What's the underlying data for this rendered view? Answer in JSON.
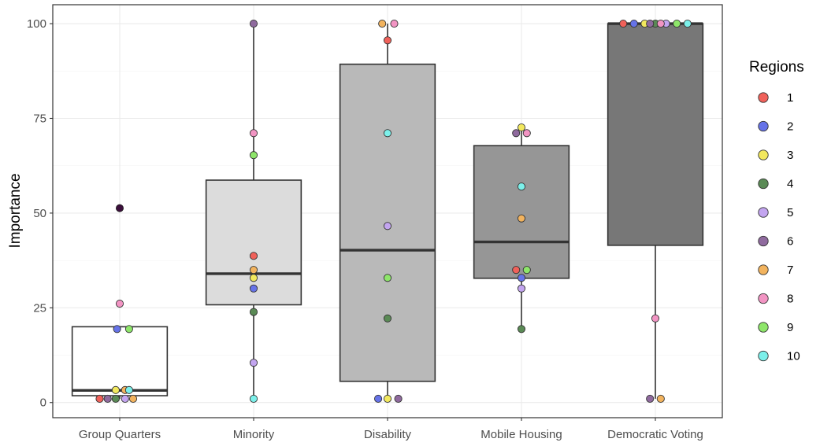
{
  "chart_data": {
    "type": "boxplot",
    "title": "",
    "xlabel": "",
    "ylabel": "Importance",
    "ylim": [
      -4,
      105
    ],
    "yticks": [
      0,
      25,
      50,
      75,
      100
    ],
    "categories": [
      "Group Quarters",
      "Minority",
      "Disability",
      "Mobile Housing",
      "Democratic Voting"
    ],
    "box_fills": [
      "#ffffff",
      "#dcdcdc",
      "#b9b9b9",
      "#969696",
      "#777777"
    ],
    "boxes": [
      {
        "category": "Group Quarters",
        "q1": 1.8,
        "median": 3.2,
        "q3": 20,
        "whisker_low": 1,
        "whisker_high": 20
      },
      {
        "category": "Minority",
        "q1": 25.8,
        "median": 34,
        "q3": 58.7,
        "whisker_low": 1,
        "whisker_high": 100
      },
      {
        "category": "Disability",
        "q1": 5.6,
        "median": 40.2,
        "q3": 89.3,
        "whisker_low": 1,
        "whisker_high": 100
      },
      {
        "category": "Mobile Housing",
        "q1": 32.8,
        "median": 42.4,
        "q3": 67.8,
        "whisker_low": 19.4,
        "whisker_high": 72.6
      },
      {
        "category": "Democratic Voting",
        "q1": 41.5,
        "median": 100,
        "q3": 100,
        "whisker_low": 1,
        "whisker_high": 100
      }
    ],
    "outliers": [
      {
        "category": "Group Quarters",
        "value": 51.3,
        "color": "#3b0f3b"
      }
    ],
    "legend": {
      "title": "Regions",
      "position": "right",
      "entries": [
        {
          "label": "1",
          "color": "#f0615a"
        },
        {
          "label": "2",
          "color": "#6673e8"
        },
        {
          "label": "3",
          "color": "#f2e85e"
        },
        {
          "label": "4",
          "color": "#5a8a55"
        },
        {
          "label": "5",
          "color": "#c3a5f0"
        },
        {
          "label": "6",
          "color": "#8f6a9e"
        },
        {
          "label": "7",
          "color": "#f2b35e"
        },
        {
          "label": "8",
          "color": "#f294c3"
        },
        {
          "label": "9",
          "color": "#8ee66a"
        },
        {
          "label": "10",
          "color": "#7cf0ea"
        }
      ]
    },
    "points": [
      {
        "category": "Group Quarters",
        "region": "1",
        "value": 1,
        "offset": -0.15
      },
      {
        "category": "Group Quarters",
        "region": "2",
        "value": 19.4,
        "offset": -0.02
      },
      {
        "category": "Group Quarters",
        "region": "3",
        "value": 3.3,
        "offset": -0.03
      },
      {
        "category": "Group Quarters",
        "region": "4",
        "value": 1,
        "offset": -0.03
      },
      {
        "category": "Group Quarters",
        "region": "5",
        "value": 1,
        "offset": 0.04
      },
      {
        "category": "Group Quarters",
        "region": "6",
        "value": 1,
        "offset": -0.09
      },
      {
        "category": "Group Quarters",
        "region": "7",
        "value": 1,
        "offset": 0.1
      },
      {
        "category": "Group Quarters",
        "region": "7",
        "value": 3.3,
        "offset": 0.04
      },
      {
        "category": "Group Quarters",
        "region": "8",
        "value": 26.1,
        "offset": 0.0
      },
      {
        "category": "Group Quarters",
        "region": "9",
        "value": 19.4,
        "offset": 0.07
      },
      {
        "category": "Group Quarters",
        "region": "10",
        "value": 3.3,
        "offset": 0.07
      },
      {
        "category": "Minority",
        "region": "1",
        "value": 38.7,
        "offset": 0.0
      },
      {
        "category": "Minority",
        "region": "2",
        "value": 30.1,
        "offset": 0.0
      },
      {
        "category": "Minority",
        "region": "3",
        "value": 32.9,
        "offset": 0.0
      },
      {
        "category": "Minority",
        "region": "4",
        "value": 23.9,
        "offset": 0.0
      },
      {
        "category": "Minority",
        "region": "5",
        "value": 10.5,
        "offset": 0.0
      },
      {
        "category": "Minority",
        "region": "6",
        "value": 100,
        "offset": 0.0
      },
      {
        "category": "Minority",
        "region": "7",
        "value": 35,
        "offset": 0.0
      },
      {
        "category": "Minority",
        "region": "8",
        "value": 71.1,
        "offset": 0.0
      },
      {
        "category": "Minority",
        "region": "9",
        "value": 65.3,
        "offset": 0.0
      },
      {
        "category": "Minority",
        "region": "10",
        "value": 1,
        "offset": 0.0
      },
      {
        "category": "Disability",
        "region": "1",
        "value": 95.6,
        "offset": 0.0
      },
      {
        "category": "Disability",
        "region": "2",
        "value": 1,
        "offset": -0.07
      },
      {
        "category": "Disability",
        "region": "3",
        "value": 1,
        "offset": 0.0
      },
      {
        "category": "Disability",
        "region": "4",
        "value": 22.2,
        "offset": 0.0
      },
      {
        "category": "Disability",
        "region": "5",
        "value": 46.6,
        "offset": 0.0
      },
      {
        "category": "Disability",
        "region": "6",
        "value": 1,
        "offset": 0.08
      },
      {
        "category": "Disability",
        "region": "7",
        "value": 100,
        "offset": -0.04
      },
      {
        "category": "Disability",
        "region": "8",
        "value": 100,
        "offset": 0.05
      },
      {
        "category": "Disability",
        "region": "9",
        "value": 32.9,
        "offset": 0.0
      },
      {
        "category": "Disability",
        "region": "10",
        "value": 71.1,
        "offset": 0.0
      },
      {
        "category": "Mobile Housing",
        "region": "1",
        "value": 35,
        "offset": -0.04
      },
      {
        "category": "Mobile Housing",
        "region": "2",
        "value": 32.9,
        "offset": 0.0
      },
      {
        "category": "Mobile Housing",
        "region": "3",
        "value": 72.6,
        "offset": 0.0
      },
      {
        "category": "Mobile Housing",
        "region": "4",
        "value": 19.4,
        "offset": 0.0
      },
      {
        "category": "Mobile Housing",
        "region": "5",
        "value": 30.1,
        "offset": 0.0
      },
      {
        "category": "Mobile Housing",
        "region": "6",
        "value": 71.1,
        "offset": -0.04
      },
      {
        "category": "Mobile Housing",
        "region": "7",
        "value": 48.6,
        "offset": 0.0
      },
      {
        "category": "Mobile Housing",
        "region": "8",
        "value": 71.1,
        "offset": 0.04
      },
      {
        "category": "Mobile Housing",
        "region": "9",
        "value": 35,
        "offset": 0.04
      },
      {
        "category": "Mobile Housing",
        "region": "10",
        "value": 57,
        "offset": 0.0
      },
      {
        "category": "Democratic Voting",
        "region": "1",
        "value": 100,
        "offset": -0.24
      },
      {
        "category": "Democratic Voting",
        "region": "2",
        "value": 100,
        "offset": -0.16
      },
      {
        "category": "Democratic Voting",
        "region": "3",
        "value": 100,
        "offset": -0.08
      },
      {
        "category": "Democratic Voting",
        "region": "4",
        "value": 100,
        "offset": 0.0
      },
      {
        "category": "Democratic Voting",
        "region": "5",
        "value": 100,
        "offset": 0.08
      },
      {
        "category": "Democratic Voting",
        "region": "6",
        "value": 1,
        "offset": -0.04
      },
      {
        "category": "Democratic Voting",
        "region": "6",
        "value": 100,
        "offset": -0.04
      },
      {
        "category": "Democratic Voting",
        "region": "7",
        "value": 1,
        "offset": 0.04
      },
      {
        "category": "Democratic Voting",
        "region": "8",
        "value": 22.2,
        "offset": 0.0
      },
      {
        "category": "Democratic Voting",
        "region": "8",
        "value": 100,
        "offset": 0.04
      },
      {
        "category": "Democratic Voting",
        "region": "9",
        "value": 100,
        "offset": 0.16
      },
      {
        "category": "Democratic Voting",
        "region": "10",
        "value": 100,
        "offset": 0.24
      }
    ]
  }
}
